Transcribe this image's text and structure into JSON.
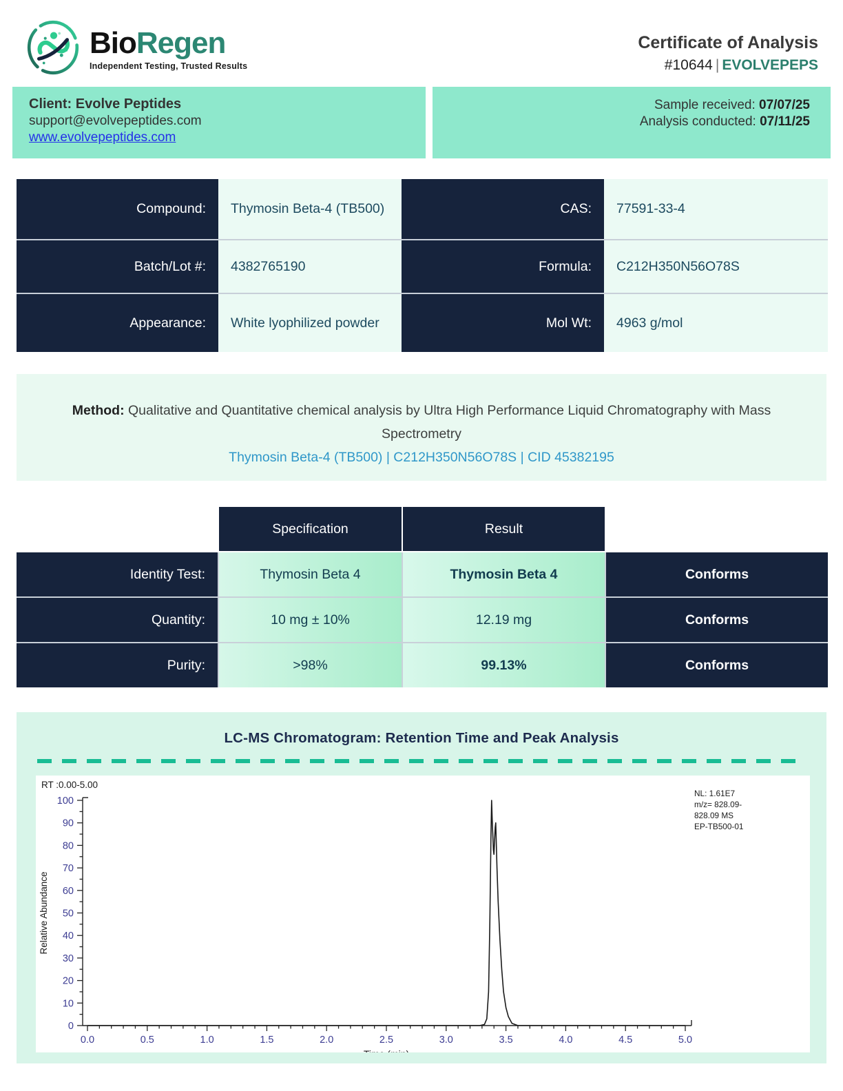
{
  "header": {
    "brand_bio": "Bio",
    "brand_regen": "Regen",
    "tagline": "Independent Testing, Trusted Results",
    "title": "Certificate of Analysis",
    "cert_number": "#10644",
    "separator": "|",
    "client_code": "EVOLVEPEPS"
  },
  "client_bar": {
    "client_label": "Client: Evolve Peptides",
    "email": "support@evolvepeptides.com",
    "website": "www.evolvepeptides.com",
    "sample_received_label": "Sample received: ",
    "sample_received_date": "07/07/25",
    "analysis_conducted_label": "Analysis conducted: ",
    "analysis_conducted_date": "07/11/25"
  },
  "compound_table": {
    "rows": [
      {
        "label_left": "Compound:",
        "value_left": "Thymosin Beta-4 (TB500)",
        "label_right": "CAS:",
        "value_right": "77591-33-4"
      },
      {
        "label_left": "Batch/Lot #:",
        "value_left": "4382765190",
        "label_right": "Formula:",
        "value_right": "C212H350N56O78S"
      },
      {
        "label_left": "Appearance:",
        "value_left": "White lyophilized powder",
        "label_right": "Mol Wt:",
        "value_right": "4963 g/mol"
      }
    ]
  },
  "method": {
    "label": "Method:",
    "text": " Qualitative and Quantitative chemical analysis by Ultra High Performance Liquid Chromatography with Mass Spectrometry",
    "link": "Thymosin Beta-4 (TB500) | C212H350N56O78S | CID 45382195"
  },
  "spec_table": {
    "headers": {
      "specification": "Specification",
      "result": "Result"
    },
    "rows": [
      {
        "label": "Identity Test:",
        "spec": "Thymosin Beta 4",
        "result": "Thymosin Beta 4",
        "status": "Conforms"
      },
      {
        "label": "Quantity:",
        "spec": "10 mg ± 10%",
        "result": "12.19 mg",
        "status": "Conforms"
      },
      {
        "label": "Purity:",
        "spec": ">98%",
        "result": "99.13%",
        "status": "Conforms"
      }
    ]
  },
  "chart_data": {
    "type": "line",
    "title": "LC-MS Chromatogram: Retention Time and Peak Analysis",
    "rt_range_label": "RT :0.00-5.00",
    "xlabel": "Time (min)",
    "ylabel": "Relative Abundance",
    "xlim": [
      0.0,
      5.0
    ],
    "ylim": [
      0,
      100
    ],
    "x_major_step": 0.5,
    "x_minor_step": 0.1,
    "y_major_step": 10,
    "y_minor_step": 5,
    "grid": false,
    "legend_position": "none",
    "annotation": [
      "NL: 1.61E7",
      "m/z= 828.09-",
      "828.09 MS",
      "EP-TB500-01"
    ],
    "peak_retention_time": 3.38,
    "peak_max_abundance": 100,
    "series": [
      {
        "name": "EP-TB500-01",
        "x": [
          0.0,
          3.28,
          3.32,
          3.34,
          3.355,
          3.365,
          3.375,
          3.38,
          3.385,
          3.395,
          3.4,
          3.41,
          3.415,
          3.425,
          3.435,
          3.45,
          3.465,
          3.48,
          3.5,
          3.52,
          3.55,
          3.6,
          5.0
        ],
        "y": [
          0,
          0,
          0.5,
          3,
          15,
          45,
          85,
          100,
          92,
          78,
          76,
          88,
          90,
          70,
          55,
          38,
          25,
          15,
          8,
          4,
          1,
          0,
          0
        ]
      }
    ]
  },
  "colors": {
    "navy": "#16233c",
    "client_bar_teal": "#8ee8cc",
    "mint_cell": "#ebfaf4",
    "section_mint": "#d8f5e9",
    "method_mint": "#e9f9f1",
    "dash_teal": "#19bc94",
    "brand_teal": "#2c8773",
    "link_blue": "#2531e8",
    "method_link_blue": "#2f97c9",
    "tick_label_navy": "#3c3c92",
    "trace_black": "#1a1a1a"
  }
}
